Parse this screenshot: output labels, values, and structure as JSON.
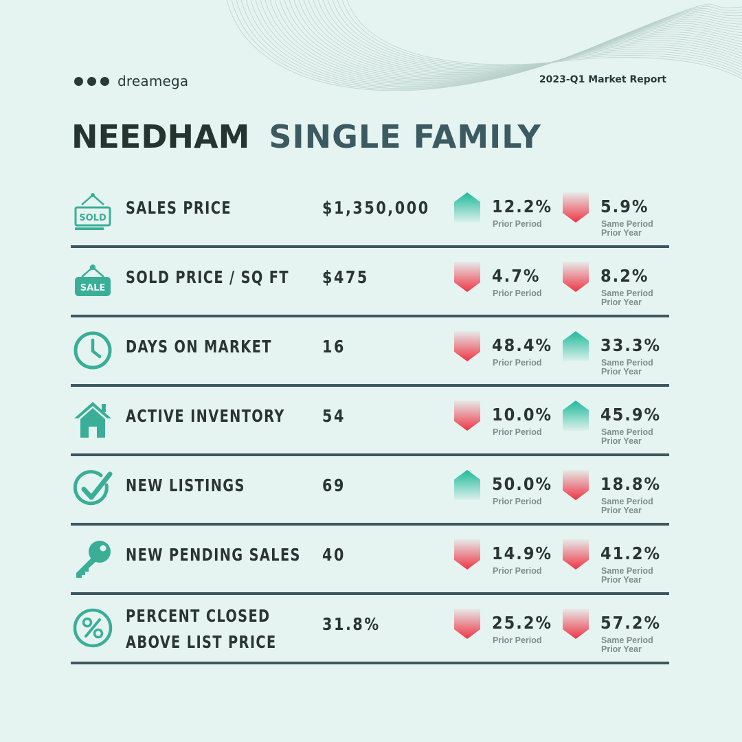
{
  "brand": {
    "name": "dreamega"
  },
  "report": {
    "label": "2023-Q1 Market Report"
  },
  "title": {
    "city": "NEEDHAM",
    "type": "SINGLE FAMILY"
  },
  "colors": {
    "up": "#1fb99a",
    "down": "#ee3444",
    "text": "#2a3531",
    "accent": "#3aae97",
    "rule": "#3d5760",
    "background": "#e6f4f1"
  },
  "prior_label": "Prior Period",
  "sameyear_label_1": "Same Period",
  "sameyear_label_2": "Prior Year",
  "metrics": [
    {
      "icon": "sold-sign-icon",
      "label": "SALES PRICE",
      "value": "$1,350,000",
      "prior": {
        "pct": "12.2%",
        "direction": "up"
      },
      "sameyear": {
        "pct": "5.9%",
        "direction": "down"
      }
    },
    {
      "icon": "sale-tag-icon",
      "label": "SOLD PRICE / SQ FT",
      "value": "$475",
      "prior": {
        "pct": "4.7%",
        "direction": "down"
      },
      "sameyear": {
        "pct": "8.2%",
        "direction": "down"
      }
    },
    {
      "icon": "clock-icon",
      "label": "DAYS ON MARKET",
      "value": "16",
      "prior": {
        "pct": "48.4%",
        "direction": "down"
      },
      "sameyear": {
        "pct": "33.3%",
        "direction": "up"
      }
    },
    {
      "icon": "house-icon",
      "label": "ACTIVE INVENTORY",
      "value": "54",
      "prior": {
        "pct": "10.0%",
        "direction": "down"
      },
      "sameyear": {
        "pct": "45.9%",
        "direction": "up"
      }
    },
    {
      "icon": "checkmark-icon",
      "label": "NEW LISTINGS",
      "value": "69",
      "prior": {
        "pct": "50.0%",
        "direction": "up"
      },
      "sameyear": {
        "pct": "18.8%",
        "direction": "down"
      }
    },
    {
      "icon": "key-icon",
      "label": "NEW PENDING SALES",
      "value": "40",
      "prior": {
        "pct": "14.9%",
        "direction": "down"
      },
      "sameyear": {
        "pct": "41.2%",
        "direction": "down"
      }
    },
    {
      "icon": "percent-icon",
      "label": "PERCENT CLOSED ABOVE LIST PRICE",
      "label_line1": "PERCENT CLOSED",
      "label_line2": "ABOVE LIST PRICE",
      "value": "31.8%",
      "prior": {
        "pct": "25.2%",
        "direction": "down"
      },
      "sameyear": {
        "pct": "57.2%",
        "direction": "down"
      }
    }
  ]
}
